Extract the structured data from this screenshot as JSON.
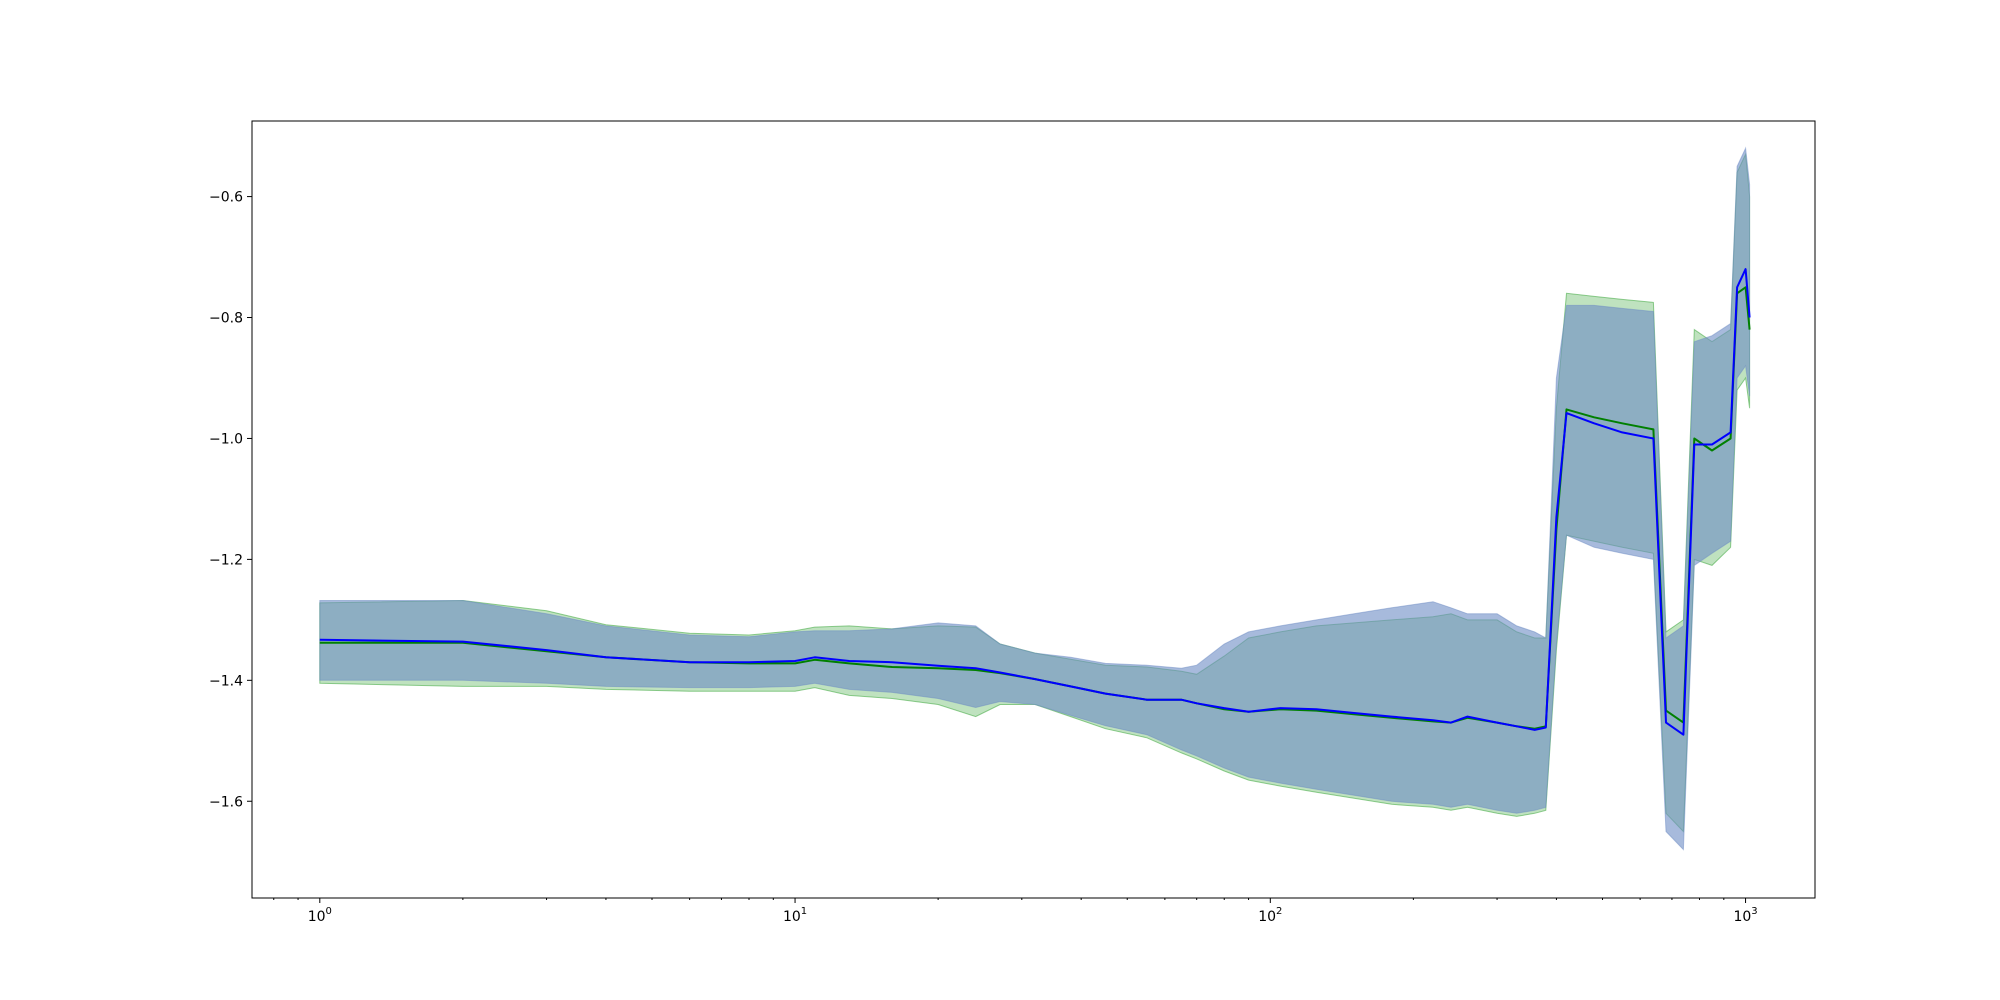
{
  "chart_data": {
    "type": "line",
    "title": "",
    "xlabel": "",
    "ylabel": "",
    "xscale": "log",
    "xlim": [
      0.72,
      1400
    ],
    "ylim": [
      -1.76,
      -0.475
    ],
    "grid": false,
    "legend": "none",
    "x_ticks": [
      {
        "value": 1,
        "base": "10",
        "exp": "0"
      },
      {
        "value": 10,
        "base": "10",
        "exp": "1"
      },
      {
        "value": 100,
        "base": "10",
        "exp": "2"
      },
      {
        "value": 1000,
        "base": "10",
        "exp": "3"
      }
    ],
    "y_ticks": [
      {
        "value": -1.6,
        "label": "−1.6"
      },
      {
        "value": -1.4,
        "label": "−1.4"
      },
      {
        "value": -1.2,
        "label": "−1.2"
      },
      {
        "value": -1.0,
        "label": "−1.0"
      },
      {
        "value": -0.8,
        "label": "−0.8"
      },
      {
        "value": -0.6,
        "label": "−0.6"
      }
    ],
    "series": [
      {
        "color": "#008000",
        "band_color": "#2ca02c",
        "points": [
          [
            1,
            -1.338,
            -1.405,
            -1.272
          ],
          [
            2,
            -1.338,
            -1.41,
            -1.268
          ],
          [
            3,
            -1.352,
            -1.41,
            -1.285
          ],
          [
            4,
            -1.362,
            -1.415,
            -1.308
          ],
          [
            6,
            -1.37,
            -1.418,
            -1.322
          ],
          [
            8,
            -1.372,
            -1.418,
            -1.325
          ],
          [
            10,
            -1.372,
            -1.418,
            -1.318
          ],
          [
            11,
            -1.366,
            -1.412,
            -1.312
          ],
          [
            13,
            -1.372,
            -1.425,
            -1.31
          ],
          [
            16,
            -1.378,
            -1.43,
            -1.315
          ],
          [
            20,
            -1.38,
            -1.44,
            -1.31
          ],
          [
            24,
            -1.383,
            -1.46,
            -1.312
          ],
          [
            27,
            -1.388,
            -1.44,
            -1.34
          ],
          [
            32,
            -1.398,
            -1.44,
            -1.355
          ],
          [
            38,
            -1.41,
            -1.46,
            -1.365
          ],
          [
            45,
            -1.422,
            -1.48,
            -1.375
          ],
          [
            55,
            -1.432,
            -1.495,
            -1.378
          ],
          [
            65,
            -1.432,
            -1.52,
            -1.385
          ],
          [
            70,
            -1.438,
            -1.53,
            -1.39
          ],
          [
            80,
            -1.448,
            -1.55,
            -1.36
          ],
          [
            90,
            -1.452,
            -1.565,
            -1.33
          ],
          [
            105,
            -1.448,
            -1.575,
            -1.32
          ],
          [
            125,
            -1.45,
            -1.585,
            -1.31
          ],
          [
            150,
            -1.456,
            -1.595,
            -1.305
          ],
          [
            180,
            -1.462,
            -1.605,
            -1.3
          ],
          [
            220,
            -1.468,
            -1.61,
            -1.295
          ],
          [
            240,
            -1.47,
            -1.615,
            -1.29
          ],
          [
            260,
            -1.462,
            -1.61,
            -1.3
          ],
          [
            300,
            -1.47,
            -1.62,
            -1.3
          ],
          [
            330,
            -1.476,
            -1.625,
            -1.32
          ],
          [
            360,
            -1.48,
            -1.62,
            -1.33
          ],
          [
            380,
            -1.476,
            -1.615,
            -1.33
          ],
          [
            400,
            -1.15,
            -1.35,
            -0.95
          ],
          [
            420,
            -0.952,
            -1.16,
            -0.76
          ],
          [
            480,
            -0.965,
            -1.17,
            -0.765
          ],
          [
            550,
            -0.975,
            -1.18,
            -0.77
          ],
          [
            640,
            -0.985,
            -1.19,
            -0.775
          ],
          [
            680,
            -1.45,
            -1.62,
            -1.32
          ],
          [
            740,
            -1.47,
            -1.65,
            -1.3
          ],
          [
            780,
            -1.0,
            -1.2,
            -0.82
          ],
          [
            850,
            -1.02,
            -1.21,
            -0.84
          ],
          [
            930,
            -1.0,
            -1.18,
            -0.82
          ],
          [
            960,
            -0.76,
            -0.92,
            -0.56
          ],
          [
            1000,
            -0.75,
            -0.9,
            -0.53
          ],
          [
            1020,
            -0.82,
            -0.95,
            -0.6
          ]
        ]
      },
      {
        "color": "#0000ff",
        "band_color": "#6d8cc4",
        "points": [
          [
            1,
            -1.333,
            -1.4,
            -1.268
          ],
          [
            2,
            -1.336,
            -1.4,
            -1.268
          ],
          [
            3,
            -1.35,
            -1.405,
            -1.29
          ],
          [
            4,
            -1.362,
            -1.41,
            -1.31
          ],
          [
            6,
            -1.37,
            -1.412,
            -1.325
          ],
          [
            8,
            -1.37,
            -1.412,
            -1.328
          ],
          [
            10,
            -1.368,
            -1.41,
            -1.32
          ],
          [
            11,
            -1.362,
            -1.405,
            -1.318
          ],
          [
            13,
            -1.368,
            -1.415,
            -1.318
          ],
          [
            16,
            -1.37,
            -1.42,
            -1.315
          ],
          [
            20,
            -1.376,
            -1.43,
            -1.305
          ],
          [
            24,
            -1.38,
            -1.445,
            -1.31
          ],
          [
            27,
            -1.387,
            -1.435,
            -1.34
          ],
          [
            32,
            -1.398,
            -1.44,
            -1.355
          ],
          [
            38,
            -1.41,
            -1.458,
            -1.362
          ],
          [
            45,
            -1.422,
            -1.475,
            -1.372
          ],
          [
            55,
            -1.432,
            -1.49,
            -1.375
          ],
          [
            65,
            -1.432,
            -1.515,
            -1.38
          ],
          [
            70,
            -1.438,
            -1.525,
            -1.375
          ],
          [
            80,
            -1.446,
            -1.545,
            -1.34
          ],
          [
            90,
            -1.452,
            -1.56,
            -1.32
          ],
          [
            105,
            -1.446,
            -1.57,
            -1.31
          ],
          [
            125,
            -1.448,
            -1.58,
            -1.3
          ],
          [
            150,
            -1.454,
            -1.59,
            -1.29
          ],
          [
            180,
            -1.46,
            -1.6,
            -1.28
          ],
          [
            220,
            -1.466,
            -1.605,
            -1.27
          ],
          [
            240,
            -1.47,
            -1.61,
            -1.28
          ],
          [
            260,
            -1.46,
            -1.605,
            -1.29
          ],
          [
            300,
            -1.47,
            -1.615,
            -1.29
          ],
          [
            330,
            -1.476,
            -1.62,
            -1.31
          ],
          [
            360,
            -1.482,
            -1.615,
            -1.32
          ],
          [
            380,
            -1.478,
            -1.61,
            -1.33
          ],
          [
            400,
            -1.13,
            -1.34,
            -0.9
          ],
          [
            420,
            -0.958,
            -1.16,
            -0.78
          ],
          [
            480,
            -0.975,
            -1.18,
            -0.78
          ],
          [
            550,
            -0.99,
            -1.19,
            -0.785
          ],
          [
            640,
            -1.0,
            -1.2,
            -0.79
          ],
          [
            680,
            -1.47,
            -1.65,
            -1.33
          ],
          [
            740,
            -1.49,
            -1.68,
            -1.31
          ],
          [
            780,
            -1.01,
            -1.21,
            -0.84
          ],
          [
            850,
            -1.01,
            -1.19,
            -0.83
          ],
          [
            930,
            -0.99,
            -1.17,
            -0.81
          ],
          [
            960,
            -0.75,
            -0.9,
            -0.55
          ],
          [
            1000,
            -0.72,
            -0.88,
            -0.52
          ],
          [
            1020,
            -0.8,
            -0.93,
            -0.58
          ]
        ]
      }
    ]
  }
}
